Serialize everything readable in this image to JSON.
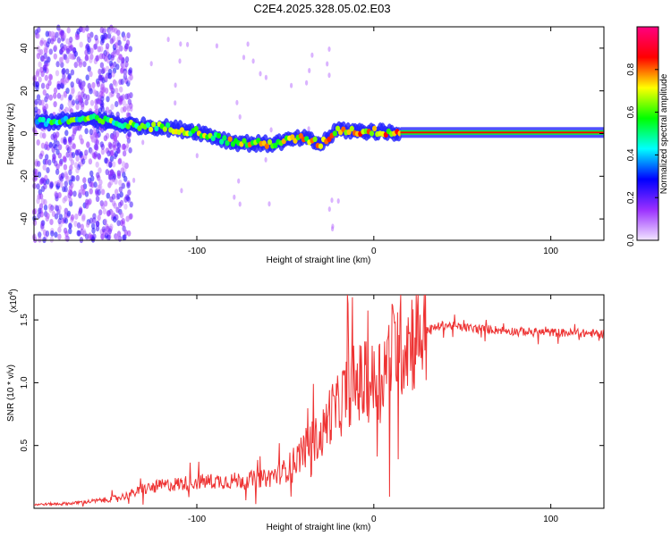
{
  "title": "C2E4.2025.328.05.02.E03",
  "chart_data": [
    {
      "type": "heatmap",
      "name": "spectrogram",
      "xlabel": "Height of straight line (km)",
      "ylabel": "Frequency (Hz)",
      "xlim": [
        -192,
        130
      ],
      "ylim": [
        -50,
        50
      ],
      "xticks": [
        -100,
        0,
        100
      ],
      "yticks": [
        -40,
        -20,
        0,
        20,
        40
      ],
      "colorbar": {
        "label": "Normalized spectral amplitude",
        "range": [
          0,
          1
        ],
        "ticks": [
          "0.0",
          "0.2",
          "0.4",
          "0.6",
          "0.8"
        ],
        "tick_values": [
          0.0,
          0.2,
          0.4,
          0.6,
          0.8
        ],
        "colors": [
          "#f2e6ff",
          "#9b30ff",
          "#0000ff",
          "#00ffff",
          "#00ff00",
          "#ffff00",
          "#ff0000",
          "#ff0080"
        ]
      },
      "ridge": {
        "x": [
          -190,
          -160,
          -140,
          -120,
          -100,
          -80,
          -60,
          -40,
          -30,
          -20,
          -10,
          0,
          15,
          130
        ],
        "freq": [
          5,
          7,
          4,
          3,
          1,
          -4,
          -5,
          -2,
          -5,
          2,
          1,
          1,
          0.5,
          0.5
        ],
        "steady_from_x": 15
      }
    },
    {
      "type": "line",
      "name": "snr",
      "xlabel": "Height of straight line (km)",
      "ylabel": "SNR (10 * v/v)",
      "y_multiplier": "(x10",
      "y_multiplier_exp": "4",
      "xlim": [
        -192,
        130
      ],
      "ylim": [
        0,
        17000
      ],
      "xticks": [
        -100,
        0,
        100
      ],
      "yticks": [
        5000,
        10000,
        15000
      ],
      "ytick_labels": [
        "0.5",
        "1.0",
        "1.5"
      ],
      "color": "#ee3333",
      "series": [
        {
          "name": "SNR",
          "x": [
            -192,
            -170,
            -150,
            -140,
            -130,
            -120,
            -100,
            -80,
            -60,
            -50,
            -40,
            -35,
            -30,
            -25,
            -20,
            -15,
            -10,
            -5,
            0,
            5,
            10,
            20,
            30,
            40,
            50,
            60,
            80,
            100,
            130
          ],
          "y": [
            300,
            400,
            700,
            1000,
            1500,
            1800,
            2100,
            2200,
            2400,
            3000,
            4500,
            5500,
            5500,
            7500,
            8000,
            9500,
            10000,
            10000,
            10000,
            11000,
            12500,
            13500,
            14200,
            14600,
            14400,
            14300,
            14100,
            14000,
            13900
          ]
        }
      ]
    }
  ]
}
